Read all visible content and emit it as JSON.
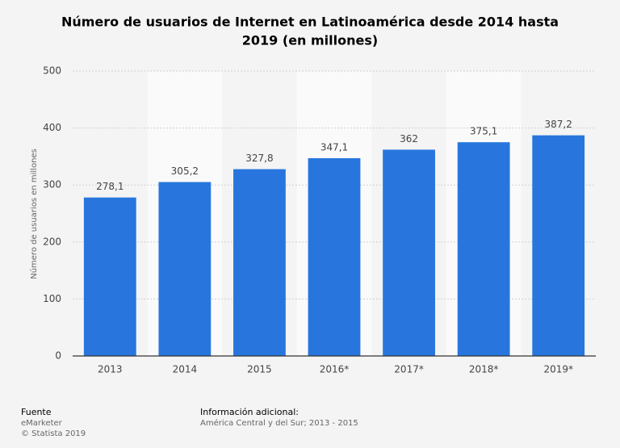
{
  "chart_data": {
    "type": "bar",
    "title": [
      "Número de usuarios de Internet en Latinoamérica desde 2014 hasta",
      "2019 (en millones)"
    ],
    "y_label": "Número de usuarios en millones",
    "categories": [
      "2013",
      "2014",
      "2015",
      "2016*",
      "2017*",
      "2018*",
      "2019*"
    ],
    "values": [
      278.1,
      305.2,
      327.8,
      347.1,
      362,
      375.1,
      387.2
    ],
    "value_labels": [
      "278,1",
      "305,2",
      "327,8",
      "347,1",
      "362",
      "375,1",
      "387,2"
    ],
    "color": "#2876dd",
    "ylim": [
      0,
      500
    ],
    "yticks": [
      0,
      100,
      200,
      300,
      400,
      500
    ],
    "grid": true
  },
  "footer": {
    "source_title": "Fuente",
    "source": "eMarketer",
    "copyright": "© Statista 2019",
    "info_title": "Información adicional:",
    "info": "América Central y del Sur; 2013 - 2015"
  }
}
